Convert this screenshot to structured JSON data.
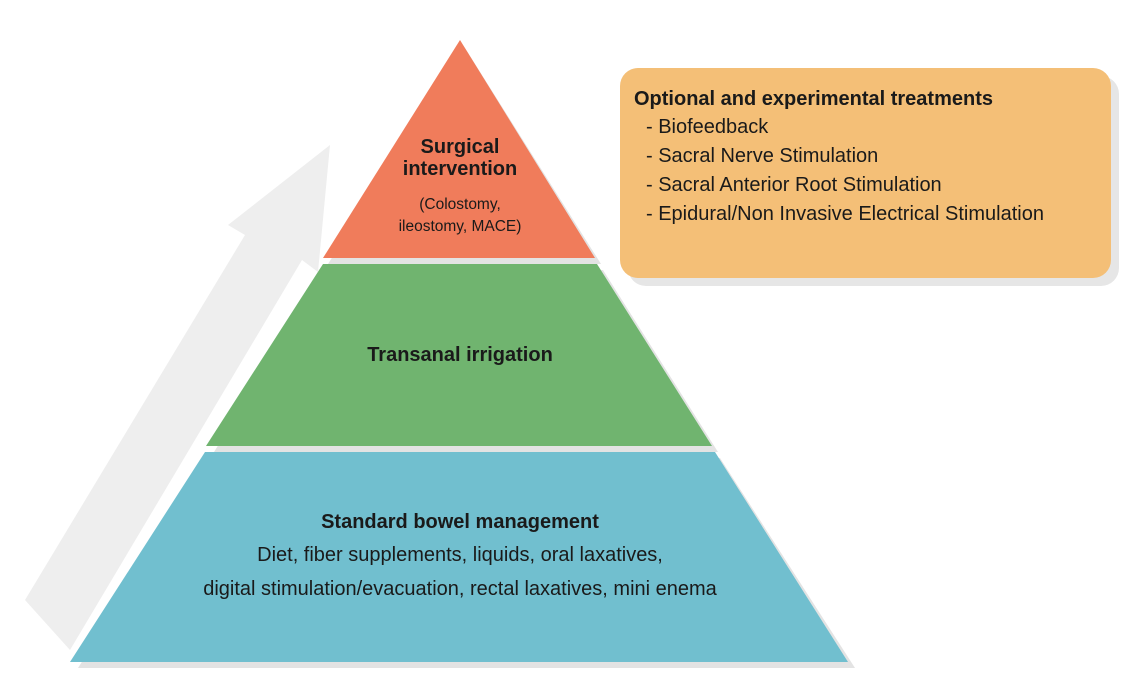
{
  "colors": {
    "top_tier": "#f07c5b",
    "middle_tier": "#70b46f",
    "bottom_tier": "#71bfcf",
    "callout": "#f4bf77",
    "arrow": "#eeeeee"
  },
  "pyramid": {
    "top": {
      "title_line1": "Surgical",
      "title_line2": "intervention",
      "sub_line1": "(Colostomy,",
      "sub_line2": "ileostomy, MACE)"
    },
    "middle": {
      "title": "Transanal irrigation"
    },
    "bottom": {
      "title": "Standard bowel management",
      "line1": "Diet, fiber supplements, liquids, oral laxatives,",
      "line2": "digital stimulation/evacuation, rectal laxatives, mini enema"
    }
  },
  "callout": {
    "title": "Optional and experimental treatments",
    "items": [
      "- Biofeedback",
      "- Sacral Nerve Stimulation",
      "- Sacral Anterior Root Stimulation",
      "- Epidural/Non Invasive Electrical Stimulation"
    ]
  }
}
